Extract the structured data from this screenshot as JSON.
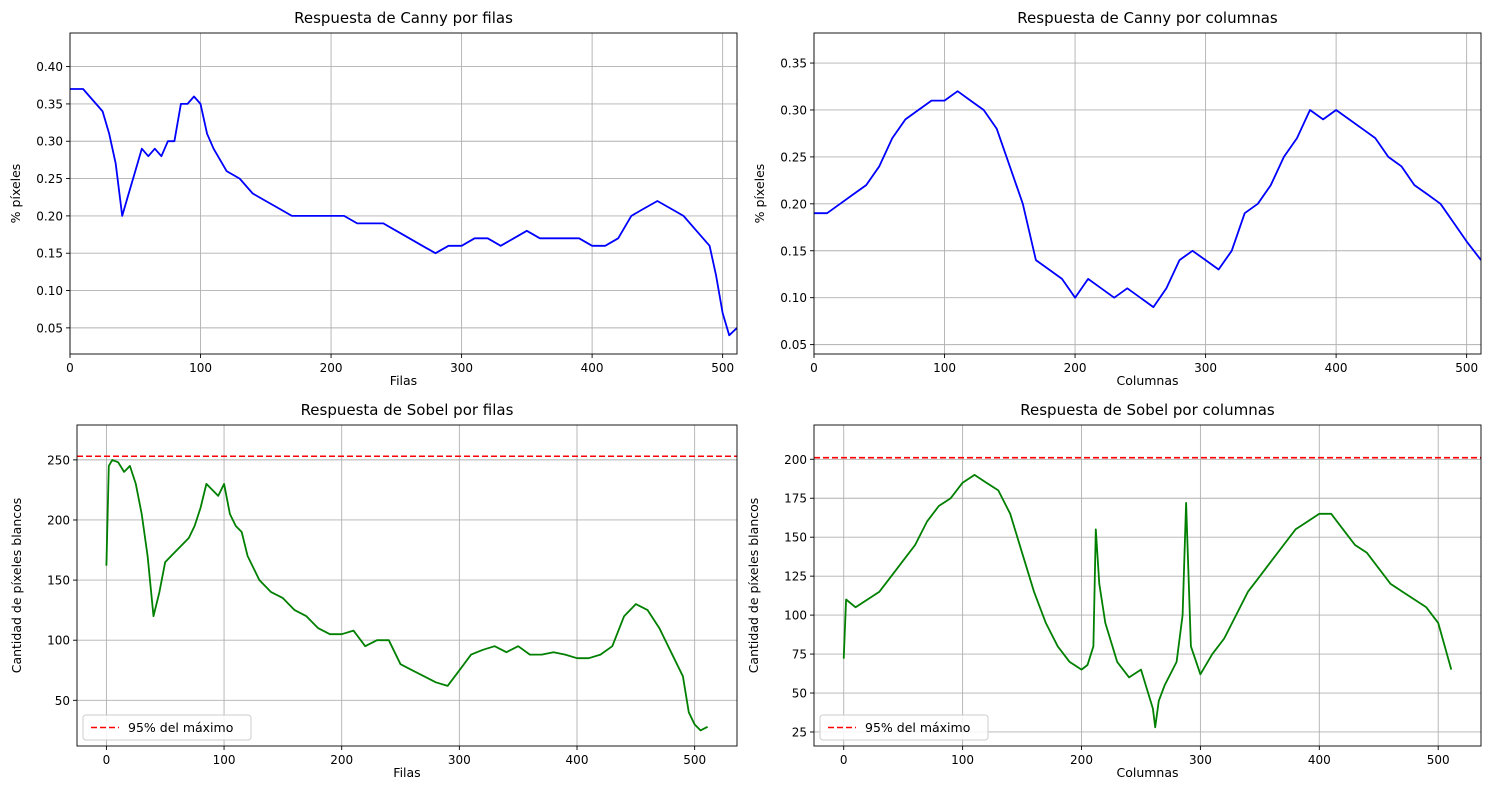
{
  "chart_data": [
    {
      "type": "line",
      "title": "Respuesta de Canny por filas",
      "xlabel": "Filas",
      "ylabel": "% píxeles",
      "xlim": [
        0,
        511
      ],
      "ylim": [
        0.015,
        0.445
      ],
      "xticks": [
        0,
        100,
        200,
        300,
        400,
        500
      ],
      "yticks": [
        0.05,
        0.1,
        0.15,
        0.2,
        0.25,
        0.3,
        0.35,
        0.4
      ],
      "ytick_labels": [
        "0.05",
        "0.10",
        "0.15",
        "0.20",
        "0.25",
        "0.30",
        "0.35",
        "0.40"
      ],
      "grid": true,
      "series": [
        {
          "color": "#0000ff",
          "x": [
            0,
            10,
            15,
            20,
            25,
            30,
            35,
            40,
            45,
            50,
            55,
            60,
            65,
            70,
            75,
            80,
            85,
            90,
            95,
            100,
            105,
            110,
            120,
            130,
            140,
            150,
            160,
            170,
            180,
            190,
            200,
            210,
            220,
            230,
            240,
            250,
            260,
            270,
            280,
            290,
            300,
            310,
            320,
            330,
            340,
            350,
            360,
            370,
            380,
            390,
            400,
            410,
            420,
            430,
            440,
            450,
            460,
            470,
            480,
            490,
            495,
            500,
            505,
            511
          ],
          "y": [
            0.37,
            0.37,
            0.36,
            0.35,
            0.34,
            0.31,
            0.27,
            0.2,
            0.23,
            0.26,
            0.29,
            0.28,
            0.29,
            0.28,
            0.3,
            0.3,
            0.35,
            0.35,
            0.36,
            0.35,
            0.31,
            0.29,
            0.26,
            0.25,
            0.23,
            0.22,
            0.21,
            0.2,
            0.2,
            0.2,
            0.2,
            0.2,
            0.19,
            0.19,
            0.19,
            0.18,
            0.17,
            0.16,
            0.15,
            0.16,
            0.16,
            0.17,
            0.17,
            0.16,
            0.17,
            0.18,
            0.17,
            0.17,
            0.17,
            0.17,
            0.16,
            0.16,
            0.17,
            0.2,
            0.21,
            0.22,
            0.21,
            0.2,
            0.18,
            0.16,
            0.12,
            0.07,
            0.04,
            0.05
          ]
        }
      ]
    },
    {
      "type": "line",
      "title": "Respuesta de Canny por columnas",
      "xlabel": "Columnas",
      "ylabel": "% píxeles",
      "xlim": [
        0,
        511
      ],
      "ylim": [
        0.04,
        0.382
      ],
      "xticks": [
        0,
        100,
        200,
        300,
        400,
        500
      ],
      "yticks": [
        0.05,
        0.1,
        0.15,
        0.2,
        0.25,
        0.3,
        0.35
      ],
      "ytick_labels": [
        "0.05",
        "0.10",
        "0.15",
        "0.20",
        "0.25",
        "0.30",
        "0.35"
      ],
      "grid": true,
      "series": [
        {
          "color": "#0000ff",
          "x": [
            0,
            10,
            20,
            30,
            40,
            50,
            60,
            70,
            80,
            90,
            100,
            110,
            120,
            130,
            140,
            150,
            160,
            170,
            180,
            190,
            200,
            210,
            220,
            230,
            240,
            250,
            260,
            270,
            280,
            290,
            300,
            310,
            320,
            330,
            340,
            350,
            360,
            370,
            380,
            390,
            400,
            410,
            420,
            430,
            440,
            450,
            460,
            470,
            480,
            490,
            500,
            511
          ],
          "y": [
            0.19,
            0.19,
            0.2,
            0.21,
            0.22,
            0.24,
            0.27,
            0.29,
            0.3,
            0.31,
            0.31,
            0.32,
            0.31,
            0.3,
            0.28,
            0.24,
            0.2,
            0.14,
            0.13,
            0.12,
            0.1,
            0.12,
            0.11,
            0.1,
            0.11,
            0.1,
            0.09,
            0.11,
            0.14,
            0.15,
            0.14,
            0.13,
            0.15,
            0.19,
            0.2,
            0.22,
            0.25,
            0.27,
            0.3,
            0.29,
            0.3,
            0.29,
            0.28,
            0.27,
            0.25,
            0.24,
            0.22,
            0.21,
            0.2,
            0.18,
            0.16,
            0.14
          ]
        }
      ]
    },
    {
      "type": "line",
      "title": "Respuesta de Sobel por filas",
      "xlabel": "Filas",
      "ylabel": "Cantidad de píxeles blancos",
      "xlim": [
        -25,
        536
      ],
      "ylim": [
        12,
        279
      ],
      "xticks": [
        0,
        100,
        200,
        300,
        400,
        500
      ],
      "yticks": [
        50,
        100,
        150,
        200,
        250
      ],
      "ytick_labels": [
        "50",
        "100",
        "150",
        "200",
        "250"
      ],
      "grid": true,
      "legend": {
        "position": "lower-left",
        "label": "95% del máximo"
      },
      "threshold": {
        "value": 253,
        "color": "#ff0000",
        "style": "dashed"
      },
      "series": [
        {
          "color": "#008000",
          "x": [
            0,
            2,
            5,
            10,
            15,
            20,
            25,
            30,
            35,
            40,
            45,
            50,
            55,
            60,
            65,
            70,
            75,
            80,
            85,
            90,
            95,
            100,
            105,
            110,
            115,
            120,
            130,
            140,
            150,
            160,
            170,
            180,
            190,
            200,
            210,
            220,
            230,
            240,
            250,
            260,
            270,
            280,
            290,
            300,
            310,
            320,
            330,
            340,
            350,
            360,
            370,
            380,
            390,
            400,
            410,
            420,
            430,
            440,
            450,
            460,
            470,
            480,
            490,
            495,
            500,
            505,
            511
          ],
          "y": [
            162,
            245,
            250,
            248,
            240,
            245,
            230,
            205,
            170,
            120,
            140,
            165,
            170,
            175,
            180,
            185,
            195,
            210,
            230,
            225,
            220,
            230,
            205,
            195,
            190,
            170,
            150,
            140,
            135,
            125,
            120,
            110,
            105,
            105,
            108,
            95,
            100,
            100,
            80,
            75,
            70,
            65,
            62,
            75,
            88,
            92,
            95,
            90,
            95,
            88,
            88,
            90,
            88,
            85,
            85,
            88,
            95,
            120,
            130,
            125,
            110,
            90,
            70,
            40,
            30,
            25,
            28
          ]
        }
      ]
    },
    {
      "type": "line",
      "title": "Respuesta de Sobel por columnas",
      "xlabel": "Columnas",
      "ylabel": "Cantidad de píxeles blancos",
      "xlim": [
        -25,
        536
      ],
      "ylim": [
        16,
        222
      ],
      "xticks": [
        0,
        100,
        200,
        300,
        400,
        500
      ],
      "yticks": [
        25,
        50,
        75,
        100,
        125,
        150,
        175,
        200
      ],
      "ytick_labels": [
        "25",
        "50",
        "75",
        "100",
        "125",
        "150",
        "175",
        "200"
      ],
      "grid": true,
      "legend": {
        "position": "lower-left",
        "label": "95% del máximo"
      },
      "threshold": {
        "value": 201,
        "color": "#ff0000",
        "style": "dashed"
      },
      "series": [
        {
          "color": "#008000",
          "x": [
            0,
            2,
            10,
            20,
            30,
            40,
            50,
            60,
            70,
            80,
            90,
            100,
            110,
            120,
            130,
            140,
            150,
            160,
            170,
            180,
            190,
            200,
            205,
            210,
            212,
            215,
            220,
            230,
            240,
            250,
            260,
            262,
            265,
            270,
            280,
            285,
            288,
            292,
            300,
            310,
            320,
            330,
            340,
            350,
            360,
            370,
            380,
            390,
            400,
            410,
            420,
            430,
            440,
            450,
            460,
            470,
            480,
            490,
            500,
            511
          ],
          "y": [
            72,
            110,
            105,
            110,
            115,
            125,
            135,
            145,
            160,
            170,
            175,
            185,
            190,
            185,
            180,
            165,
            140,
            115,
            95,
            80,
            70,
            65,
            68,
            80,
            155,
            120,
            95,
            70,
            60,
            65,
            40,
            28,
            45,
            55,
            70,
            100,
            172,
            80,
            62,
            75,
            85,
            100,
            115,
            125,
            135,
            145,
            155,
            160,
            165,
            165,
            155,
            145,
            140,
            130,
            120,
            115,
            110,
            105,
            95,
            65
          ]
        },
        {
          "name": "95% del máximo"
        }
      ]
    }
  ]
}
